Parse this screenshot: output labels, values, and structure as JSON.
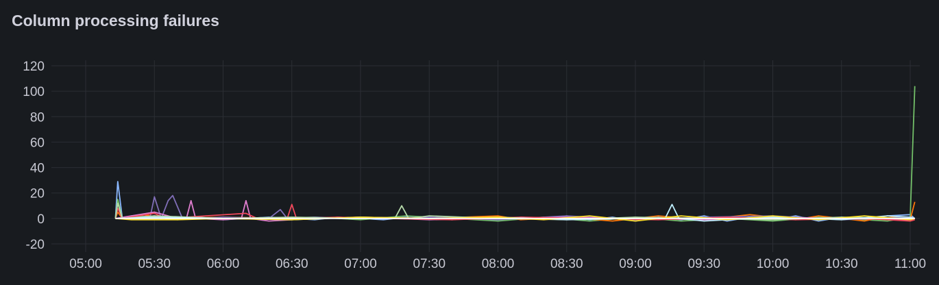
{
  "panel": {
    "title": "Column processing failures"
  },
  "chart_data": {
    "type": "line",
    "title": "Column processing failures",
    "ylim": [
      -20,
      120
    ],
    "yticks": [
      "-20",
      "0",
      "20",
      "40",
      "60",
      "80",
      "100",
      "120"
    ],
    "xlim": [
      "05:00",
      "11:00"
    ],
    "xticks": [
      "05:00",
      "05:30",
      "06:00",
      "06:30",
      "07:00",
      "07:30",
      "08:00",
      "08:30",
      "09:00",
      "09:30",
      "10:00",
      "10:30",
      "11:00"
    ],
    "grid": true,
    "legend": "none",
    "series": [
      {
        "color": "#8ab8ff",
        "points": [
          [
            "05:13",
            0
          ],
          [
            "05:14",
            29
          ],
          [
            "05:16",
            0
          ],
          [
            "05:20",
            1
          ],
          [
            "05:30",
            2
          ],
          [
            "05:40",
            0
          ],
          [
            "05:50",
            1
          ],
          [
            "06:00",
            -1
          ],
          [
            "06:10",
            0
          ],
          [
            "06:20",
            1
          ],
          [
            "06:30",
            0
          ],
          [
            "06:40",
            -1
          ],
          [
            "06:50",
            1
          ],
          [
            "07:00",
            0
          ],
          [
            "07:10",
            -1
          ],
          [
            "07:20",
            1
          ],
          [
            "07:30",
            0
          ],
          [
            "07:40",
            -1
          ],
          [
            "07:50",
            1
          ],
          [
            "08:00",
            -2
          ],
          [
            "08:10",
            1
          ],
          [
            "08:20",
            0
          ],
          [
            "08:30",
            2
          ],
          [
            "08:40",
            -1
          ],
          [
            "08:50",
            1
          ],
          [
            "09:00",
            -2
          ],
          [
            "09:10",
            1
          ],
          [
            "09:20",
            -1
          ],
          [
            "09:30",
            2
          ],
          [
            "09:40",
            -2
          ],
          [
            "09:50",
            1
          ],
          [
            "10:00",
            -1
          ],
          [
            "10:10",
            2
          ],
          [
            "10:20",
            -2
          ],
          [
            "10:30",
            1
          ],
          [
            "10:40",
            -1
          ],
          [
            "10:50",
            2
          ],
          [
            "11:00",
            3
          ],
          [
            "11:02",
            0
          ]
        ]
      },
      {
        "color": "#73bf69",
        "points": [
          [
            "05:13",
            0
          ],
          [
            "05:14",
            15
          ],
          [
            "05:16",
            0
          ],
          [
            "05:20",
            2
          ],
          [
            "05:30",
            1
          ],
          [
            "05:40",
            -1
          ],
          [
            "05:50",
            0
          ],
          [
            "06:00",
            1
          ],
          [
            "06:20",
            0
          ],
          [
            "06:40",
            1
          ],
          [
            "07:00",
            -1
          ],
          [
            "07:20",
            2
          ],
          [
            "07:40",
            0
          ],
          [
            "08:00",
            -2
          ],
          [
            "08:20",
            1
          ],
          [
            "08:40",
            -2
          ],
          [
            "09:00",
            1
          ],
          [
            "09:20",
            -2
          ],
          [
            "09:40",
            0
          ],
          [
            "10:00",
            -2
          ],
          [
            "10:20",
            1
          ],
          [
            "10:40",
            -1
          ],
          [
            "10:50",
            -2
          ],
          [
            "11:00",
            1
          ],
          [
            "11:02",
            104
          ]
        ]
      },
      {
        "color": "#ff780a",
        "points": [
          [
            "05:13",
            0
          ],
          [
            "05:14",
            5
          ],
          [
            "05:16",
            0
          ],
          [
            "05:25",
            3
          ],
          [
            "05:35",
            0
          ],
          [
            "06:00",
            1
          ],
          [
            "06:30",
            0
          ],
          [
            "07:00",
            1
          ],
          [
            "07:30",
            0
          ],
          [
            "08:00",
            2
          ],
          [
            "08:10",
            -1
          ],
          [
            "08:30",
            1
          ],
          [
            "08:50",
            -2
          ],
          [
            "09:10",
            2
          ],
          [
            "09:30",
            -1
          ],
          [
            "09:50",
            3
          ],
          [
            "10:10",
            -1
          ],
          [
            "10:20",
            2
          ],
          [
            "10:40",
            -2
          ],
          [
            "10:50",
            2
          ],
          [
            "11:00",
            -1
          ],
          [
            "11:02",
            13
          ]
        ]
      },
      {
        "color": "#806eb7",
        "points": [
          [
            "05:13",
            0
          ],
          [
            "05:20",
            0
          ],
          [
            "05:28",
            0
          ],
          [
            "05:30",
            17
          ],
          [
            "05:33",
            0
          ],
          [
            "05:36",
            14
          ],
          [
            "05:38",
            18
          ],
          [
            "05:42",
            1
          ],
          [
            "05:50",
            0
          ],
          [
            "06:00",
            1
          ],
          [
            "06:20",
            0
          ],
          [
            "06:25",
            7
          ],
          [
            "06:28",
            0
          ],
          [
            "06:40",
            1
          ],
          [
            "07:00",
            0
          ],
          [
            "07:30",
            1
          ],
          [
            "08:00",
            -1
          ],
          [
            "08:30",
            2
          ],
          [
            "09:00",
            -1
          ],
          [
            "09:30",
            1
          ],
          [
            "10:00",
            2
          ],
          [
            "10:30",
            -1
          ],
          [
            "11:00",
            1
          ],
          [
            "11:02",
            0
          ]
        ]
      },
      {
        "color": "#e07ecf",
        "points": [
          [
            "05:13",
            0
          ],
          [
            "05:30",
            5
          ],
          [
            "05:40",
            0
          ],
          [
            "05:44",
            0
          ],
          [
            "05:46",
            14
          ],
          [
            "05:48",
            0
          ],
          [
            "06:00",
            -1
          ],
          [
            "06:08",
            0
          ],
          [
            "06:10",
            14
          ],
          [
            "06:12",
            0
          ],
          [
            "06:20",
            -2
          ],
          [
            "06:40",
            0
          ],
          [
            "07:00",
            1
          ],
          [
            "07:30",
            -1
          ],
          [
            "08:00",
            0
          ],
          [
            "08:30",
            1
          ],
          [
            "09:00",
            0
          ],
          [
            "09:30",
            -1
          ],
          [
            "10:00",
            1
          ],
          [
            "10:30",
            0
          ],
          [
            "11:00",
            -1
          ],
          [
            "11:02",
            0
          ]
        ]
      },
      {
        "color": "#f2495c",
        "points": [
          [
            "05:13",
            0
          ],
          [
            "05:14",
            8
          ],
          [
            "05:16",
            0
          ],
          [
            "05:30",
            4
          ],
          [
            "05:35",
            0
          ],
          [
            "06:10",
            4
          ],
          [
            "06:15",
            0
          ],
          [
            "06:28",
            0
          ],
          [
            "06:30",
            11
          ],
          [
            "06:32",
            0
          ],
          [
            "06:50",
            1
          ],
          [
            "07:10",
            0
          ],
          [
            "07:40",
            -1
          ],
          [
            "08:10",
            1
          ],
          [
            "08:40",
            0
          ],
          [
            "09:10",
            -1
          ],
          [
            "09:40",
            1
          ],
          [
            "10:10",
            -1
          ],
          [
            "10:40",
            0
          ],
          [
            "11:00",
            -2
          ],
          [
            "11:02",
            -1
          ]
        ]
      },
      {
        "color": "#b7dbab",
        "points": [
          [
            "05:13",
            0
          ],
          [
            "05:14",
            12
          ],
          [
            "05:16",
            0
          ],
          [
            "05:30",
            2
          ],
          [
            "06:00",
            0
          ],
          [
            "06:30",
            1
          ],
          [
            "07:00",
            0
          ],
          [
            "07:15",
            0
          ],
          [
            "07:18",
            10
          ],
          [
            "07:21",
            0
          ],
          [
            "07:30",
            2
          ],
          [
            "08:00",
            0
          ],
          [
            "08:30",
            -1
          ],
          [
            "09:00",
            1
          ],
          [
            "09:30",
            0
          ],
          [
            "10:00",
            -1
          ],
          [
            "10:30",
            1
          ],
          [
            "11:00",
            0
          ],
          [
            "11:02",
            0
          ]
        ]
      },
      {
        "color": "#c0f0ff",
        "points": [
          [
            "05:13",
            0
          ],
          [
            "05:30",
            1
          ],
          [
            "06:00",
            0
          ],
          [
            "06:30",
            -1
          ],
          [
            "07:00",
            1
          ],
          [
            "07:30",
            0
          ],
          [
            "08:00",
            1
          ],
          [
            "08:30",
            -1
          ],
          [
            "09:00",
            0
          ],
          [
            "09:13",
            0
          ],
          [
            "09:16",
            11
          ],
          [
            "09:19",
            0
          ],
          [
            "09:30",
            -2
          ],
          [
            "10:00",
            1
          ],
          [
            "10:30",
            -1
          ],
          [
            "10:50",
            2
          ],
          [
            "11:00",
            1
          ],
          [
            "11:02",
            0
          ]
        ]
      },
      {
        "color": "#fade2a",
        "points": [
          [
            "05:13",
            0
          ],
          [
            "05:20",
            -1
          ],
          [
            "05:40",
            -1
          ],
          [
            "06:00",
            0
          ],
          [
            "06:30",
            -1
          ],
          [
            "07:00",
            1
          ],
          [
            "07:30",
            0
          ],
          [
            "08:00",
            1
          ],
          [
            "08:20",
            -1
          ],
          [
            "08:40",
            2
          ],
          [
            "09:00",
            -2
          ],
          [
            "09:20",
            2
          ],
          [
            "09:40",
            -1
          ],
          [
            "10:00",
            2
          ],
          [
            "10:20",
            -1
          ],
          [
            "10:40",
            2
          ],
          [
            "11:00",
            -1
          ],
          [
            "11:02",
            0
          ]
        ]
      },
      {
        "color": "#ffffff",
        "points": [
          [
            "05:13",
            0
          ],
          [
            "05:30",
            0
          ],
          [
            "06:00",
            0
          ],
          [
            "06:30",
            0
          ],
          [
            "07:00",
            0
          ],
          [
            "07:30",
            0
          ],
          [
            "08:00",
            0
          ],
          [
            "08:30",
            0
          ],
          [
            "09:00",
            0
          ],
          [
            "09:30",
            0
          ],
          [
            "10:00",
            0
          ],
          [
            "10:30",
            0
          ],
          [
            "11:00",
            0
          ],
          [
            "11:02",
            0
          ]
        ]
      }
    ]
  }
}
